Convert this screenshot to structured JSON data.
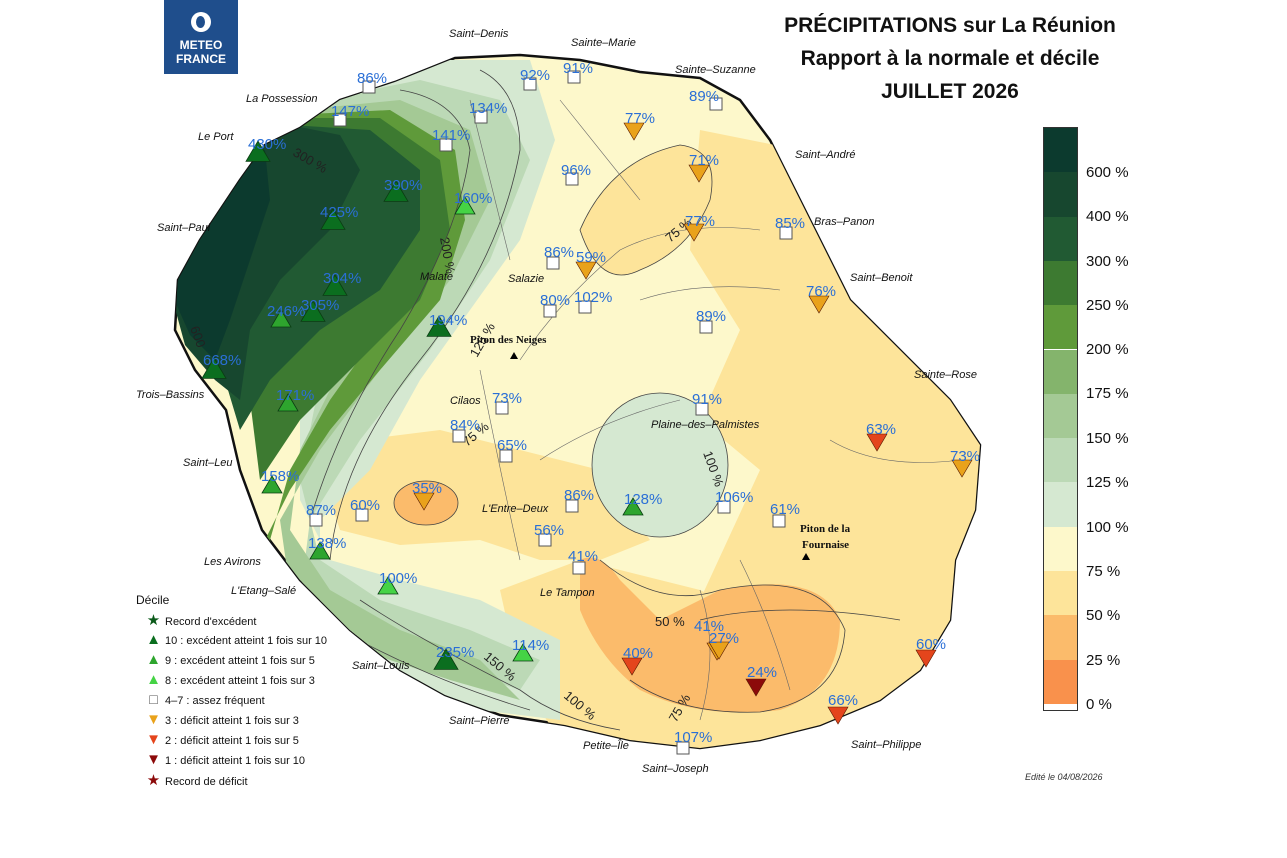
{
  "logo": {
    "line1": "METEO",
    "line2": "FRANCE"
  },
  "title": {
    "line1": "PRÉCIPITATIONS sur La Réunion",
    "line2": "Rapport à la normale et décile",
    "line3": "JUILLET 2026"
  },
  "colorbar": {
    "labels": [
      "600 %",
      "400 %",
      "300 %",
      "250 %",
      "200 %",
      "175 %",
      "150 %",
      "125 %",
      "100 %",
      "75 %",
      "50 %",
      "25 %",
      "0 %"
    ],
    "colors": [
      "#0c3a2e",
      "#17472f",
      "#215a33",
      "#3d7a31",
      "#5f9a3a",
      "#84b46c",
      "#a4c995",
      "#bcd9b6",
      "#d5e8d1",
      "#fdf8cb",
      "#fde49a",
      "#fbbb6b",
      "#f9914c"
    ]
  },
  "places": [
    {
      "name": "Saint–Denis"
    },
    {
      "name": "Sainte–Marie"
    },
    {
      "name": "Sainte–Suzanne"
    },
    {
      "name": "La Possession"
    },
    {
      "name": "Le Port"
    },
    {
      "name": "Saint–André"
    },
    {
      "name": "Bras–Panon"
    },
    {
      "name": "Saint–Paul"
    },
    {
      "name": "Saint–Benoit"
    },
    {
      "name": "Malate"
    },
    {
      "name": "Salazie"
    },
    {
      "name": "Piton des Neiges"
    },
    {
      "name": "Trois–Bassins"
    },
    {
      "name": "Sainte–Rose"
    },
    {
      "name": "Cilaos"
    },
    {
      "name": "Plaine–des–Palmistes"
    },
    {
      "name": "Saint–Leu"
    },
    {
      "name": "L'Entre–Deux"
    },
    {
      "name": "Piton de la"
    },
    {
      "name": "Fournaise"
    },
    {
      "name": "Les Avirons"
    },
    {
      "name": "L'Etang–Salé"
    },
    {
      "name": "Le Tampon"
    },
    {
      "name": "Saint–Louis"
    },
    {
      "name": "Saint–Pierre"
    },
    {
      "name": "Petite–Île"
    },
    {
      "name": "Saint–Philippe"
    },
    {
      "name": "Saint–Joseph"
    }
  ],
  "contour_labels": [
    "300 %",
    "200 %",
    "75 %",
    "125 %",
    "75 %",
    "100 %",
    "600",
    "50 %",
    "150 %",
    "100 %",
    "75 %"
  ],
  "stations": [
    {
      "v": "86%",
      "sym": "square"
    },
    {
      "v": "147%",
      "sym": "square"
    },
    {
      "v": "134%",
      "sym": "square"
    },
    {
      "v": "92%",
      "sym": "square"
    },
    {
      "v": "91%",
      "sym": "square"
    },
    {
      "v": "89%",
      "sym": "square"
    },
    {
      "v": "430%",
      "sym": "up10"
    },
    {
      "v": "141%",
      "sym": "square"
    },
    {
      "v": "77%",
      "sym": "down3"
    },
    {
      "v": "390%",
      "sym": "up10"
    },
    {
      "v": "160%",
      "sym": "up8"
    },
    {
      "v": "96%",
      "sym": "square"
    },
    {
      "v": "71%",
      "sym": "down3"
    },
    {
      "v": "425%",
      "sym": "up10"
    },
    {
      "v": "77%",
      "sym": "down3"
    },
    {
      "v": "85%",
      "sym": "square"
    },
    {
      "v": "86%",
      "sym": "square"
    },
    {
      "v": "59%",
      "sym": "down3"
    },
    {
      "v": "304%",
      "sym": "up10"
    },
    {
      "v": "76%",
      "sym": "down3"
    },
    {
      "v": "246%",
      "sym": "up9"
    },
    {
      "v": "305%",
      "sym": "up10"
    },
    {
      "v": "80%",
      "sym": "square"
    },
    {
      "v": "102%",
      "sym": "square"
    },
    {
      "v": "89%",
      "sym": "square"
    },
    {
      "v": "194%",
      "sym": "up10"
    },
    {
      "v": "668%",
      "sym": "up10"
    },
    {
      "v": "171%",
      "sym": "up9"
    },
    {
      "v": "73%",
      "sym": "square"
    },
    {
      "v": "91%",
      "sym": "square"
    },
    {
      "v": "84%",
      "sym": "square"
    },
    {
      "v": "65%",
      "sym": "square"
    },
    {
      "v": "63%",
      "sym": "down2"
    },
    {
      "v": "73%",
      "sym": "down3"
    },
    {
      "v": "158%",
      "sym": "up9"
    },
    {
      "v": "35%",
      "sym": "down3"
    },
    {
      "v": "60%",
      "sym": "square"
    },
    {
      "v": "87%",
      "sym": "square"
    },
    {
      "v": "86%",
      "sym": "square"
    },
    {
      "v": "128%",
      "sym": "up9"
    },
    {
      "v": "106%",
      "sym": "square"
    },
    {
      "v": "61%",
      "sym": "square"
    },
    {
      "v": "138%",
      "sym": "up9"
    },
    {
      "v": "56%",
      "sym": "square"
    },
    {
      "v": "41%",
      "sym": "square"
    },
    {
      "v": "100%",
      "sym": "up8"
    },
    {
      "v": "41%",
      "sym": "down3"
    },
    {
      "v": "27%",
      "sym": "down3"
    },
    {
      "v": "235%",
      "sym": "up10"
    },
    {
      "v": "114%",
      "sym": "up8"
    },
    {
      "v": "40%",
      "sym": "down2"
    },
    {
      "v": "24%",
      "sym": "down1"
    },
    {
      "v": "60%",
      "sym": "down2"
    },
    {
      "v": "66%",
      "sym": "down2"
    },
    {
      "v": "107%",
      "sym": "square"
    }
  ],
  "legend": {
    "title": "Décile",
    "rows": [
      {
        "label": "Record d'excédent",
        "sym": "★",
        "color": "#0b5a1a"
      },
      {
        "label": "10 : excédent atteint 1 fois sur 10",
        "sym": "▲",
        "color": "#0b6e1f"
      },
      {
        "label": "9 : excédent atteint 1 fois sur 5",
        "sym": "▲",
        "color": "#2ea52e"
      },
      {
        "label": "8 : excédent atteint 1 fois sur 3",
        "sym": "▲",
        "color": "#45d345"
      },
      {
        "label": "4–7 : assez fréquent",
        "sym": "□",
        "color": "#555555"
      },
      {
        "label": "3 : déficit atteint 1 fois sur 3",
        "sym": "▼",
        "color": "#e9a21b"
      },
      {
        "label": "2 : déficit atteint 1 fois sur 5",
        "sym": "▼",
        "color": "#e4451c"
      },
      {
        "label": "1 : déficit  atteint 1 fois sur 10",
        "sym": "▼",
        "color": "#8c0a0a"
      },
      {
        "label": "Record de déficit",
        "sym": "★",
        "color": "#8c0a0a"
      }
    ]
  },
  "edited": "Edité le 04/08/2026"
}
